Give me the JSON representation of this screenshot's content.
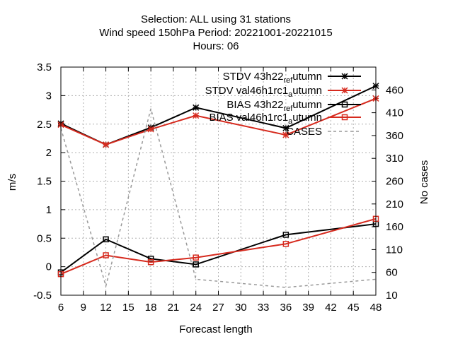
{
  "chart_data": {
    "type": "line",
    "title_lines": [
      "Selection: ALL using    31 stations",
      "Wind speed 150hPa   Period: 20221001-20221015",
      "Hours:  06"
    ],
    "xlabel": "Forecast length",
    "ylabel": "m/s",
    "y2label": "No cases",
    "xlim": [
      6,
      48
    ],
    "ylim": [
      -0.5,
      3.5
    ],
    "y2lim": [
      10,
      510
    ],
    "xticks": [
      "6",
      "9",
      "12",
      "15",
      "18",
      "21",
      "24",
      "27",
      "30",
      "33",
      "36",
      "39",
      "42",
      "45",
      "48"
    ],
    "yticks": [
      "-0.5",
      "0",
      "0.5",
      "1",
      "1.5",
      "2",
      "2.5",
      "3",
      "3.5"
    ],
    "y2ticks": [
      "10",
      "60",
      "110",
      "160",
      "210",
      "260",
      "310",
      "360",
      "410",
      "460"
    ],
    "grid": true,
    "legend_position": "top-right",
    "series": [
      {
        "name": "STDV 43h22_ref_autumn",
        "label_main": "STDV 43h22",
        "label_sub": "ref",
        "label_after": "utumn",
        "color": "#000000",
        "marker": "star",
        "axis": "y",
        "x": [
          6,
          12,
          18,
          24,
          36,
          48
        ],
        "values": [
          2.51,
          2.14,
          2.44,
          2.79,
          2.43,
          3.17
        ]
      },
      {
        "name": "STDV val46h1rc1_autumn",
        "label_main": "STDV val46h1rc1",
        "label_sub": "a",
        "label_after": "utumn",
        "color": "#d62a1e",
        "marker": "star",
        "axis": "y",
        "x": [
          6,
          12,
          18,
          24,
          36,
          48
        ],
        "values": [
          2.49,
          2.14,
          2.41,
          2.65,
          2.31,
          2.95
        ]
      },
      {
        "name": "BIAS 43h22_ref_autumn",
        "label_main": "BIAS 43h22",
        "label_sub": "ref",
        "label_after": "utumn",
        "color": "#000000",
        "marker": "square",
        "axis": "y",
        "x": [
          6,
          12,
          18,
          24,
          36,
          48
        ],
        "values": [
          -0.1,
          0.48,
          0.14,
          0.04,
          0.56,
          0.75
        ]
      },
      {
        "name": "BIAS val46h1rc1_autumn",
        "label_main": "BIAS val46h1rc1",
        "label_sub": "a",
        "label_after": "utumn",
        "color": "#d62a1e",
        "marker": "square",
        "axis": "y",
        "x": [
          6,
          12,
          18,
          24,
          36,
          48
        ],
        "values": [
          -0.13,
          0.2,
          0.08,
          0.16,
          0.4,
          0.84
        ]
      },
      {
        "name": "CASES",
        "label_main": "CASES",
        "label_sub": "",
        "label_after": "",
        "color": "#999999",
        "marker": "none",
        "dashed": true,
        "axis": "y2",
        "x": [
          6,
          12,
          18,
          24,
          36,
          48
        ],
        "values": [
          376,
          30,
          419,
          45,
          27,
          45
        ]
      }
    ]
  }
}
